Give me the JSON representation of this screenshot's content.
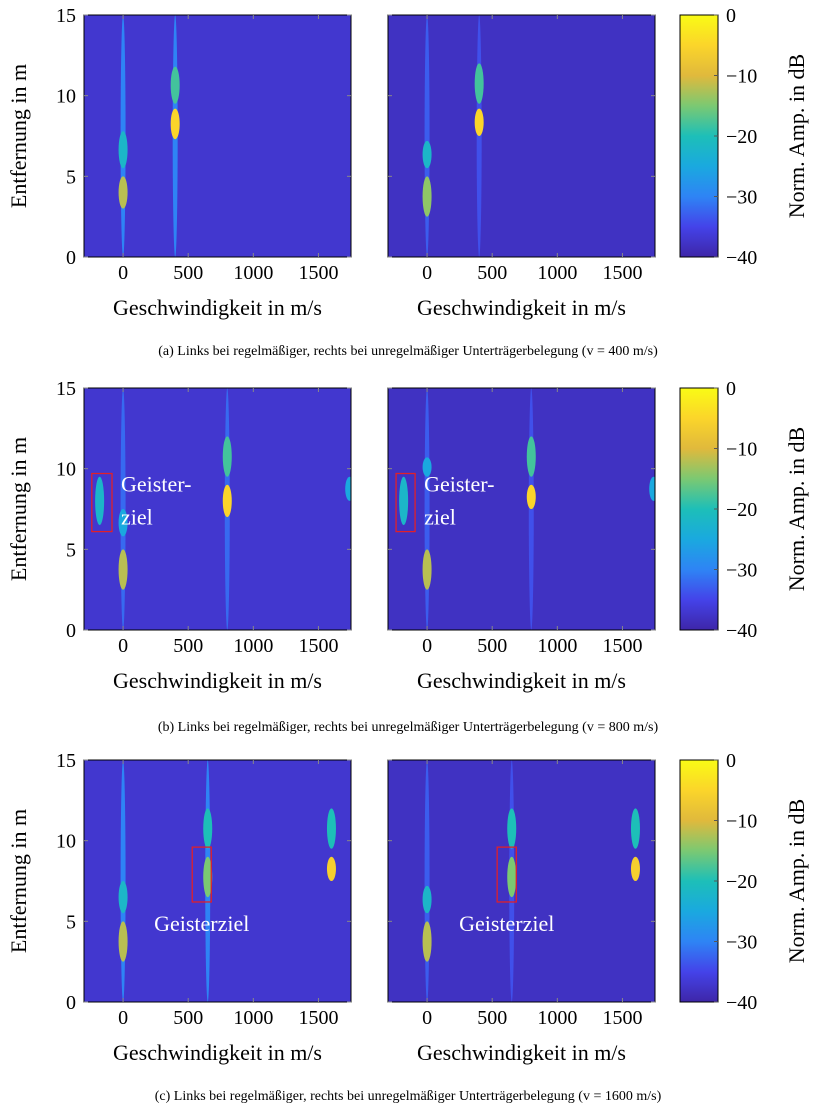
{
  "colormap": [
    "#3e26a8",
    "#4443e9",
    "#2e84f5",
    "#1aa9df",
    "#1dbfb8",
    "#7bc972",
    "#e0b93c",
    "#fbd52a",
    "#f9fb15"
  ],
  "captions": [
    "(a) Links bei regelmäßiger, rechts bei unregelmäßiger Unterträgerbelegung (v = 400 m/s)",
    "(b) Links bei regelmäßiger, rechts bei unregelmäßiger Unterträgerbelegung (v = 800 m/s)",
    "(c) Links bei regelmäßiger, rechts bei unregelmäßiger Unterträgerbelegung (v = 1600 m/s)"
  ],
  "chart_data": [
    {
      "type": "heatmap",
      "xlabel": "Geschwindigkeit in m/s",
      "ylabel": "Entfernung in m",
      "xlim": [
        -300,
        1750
      ],
      "ylim": [
        0,
        15
      ],
      "xticks": [
        0,
        500,
        1000,
        1500
      ],
      "yticks": [
        0,
        5,
        10,
        15
      ],
      "background_level": -37,
      "streaks": [
        {
          "x": 0,
          "y": [
            0,
            15
          ],
          "level": -30
        },
        {
          "x": 0,
          "y": [
            5.5,
            7.8
          ],
          "level": -22
        },
        {
          "x": 0,
          "y": [
            3,
            5
          ],
          "level": -12
        },
        {
          "x": 400,
          "y": [
            0,
            15
          ],
          "level": -30
        },
        {
          "x": 400,
          "y": [
            9.5,
            11.8
          ],
          "level": -18
        },
        {
          "x": 400,
          "y": [
            7.3,
            9.2
          ],
          "level": -5
        }
      ]
    },
    {
      "type": "heatmap",
      "xlabel": "Geschwindigkeit in m/s",
      "xlim": [
        -300,
        1750
      ],
      "ylim": [
        0,
        15
      ],
      "xticks": [
        0,
        500,
        1000,
        1500
      ],
      "yticks": [
        0,
        5,
        10,
        15
      ],
      "yticklabels": false,
      "background_level": -38,
      "streaks": [
        {
          "x": 0,
          "y": [
            0,
            15
          ],
          "level": -33
        },
        {
          "x": 0,
          "y": [
            5.5,
            7.2
          ],
          "level": -22
        },
        {
          "x": 0,
          "y": [
            2.5,
            5
          ],
          "level": -14
        },
        {
          "x": 400,
          "y": [
            0,
            15
          ],
          "level": -34
        },
        {
          "x": 400,
          "y": [
            9.5,
            12
          ],
          "level": -18
        },
        {
          "x": 400,
          "y": [
            7.5,
            9.2
          ],
          "level": -5
        }
      ]
    },
    {
      "type": "colorbar",
      "label": "Norm. Amp. in dB",
      "ylim": [
        -40,
        0
      ],
      "yticks": [
        {
          "value": -40,
          "label": "−40"
        },
        {
          "value": -30,
          "label": "−30"
        },
        {
          "value": -20,
          "label": "−20"
        },
        {
          "value": -10,
          "label": "−10"
        },
        0
      ]
    },
    {
      "type": "heatmap",
      "xlabel": "Geschwindigkeit in m/s",
      "ylabel": "Entfernung in m",
      "xlim": [
        -300,
        1750
      ],
      "ylim": [
        0,
        15
      ],
      "xticks": [
        0,
        500,
        1000,
        1500
      ],
      "yticks": [
        0,
        5,
        10,
        15
      ],
      "background_level": -37,
      "streaks": [
        {
          "x": 0,
          "y": [
            0,
            15
          ],
          "level": -32
        },
        {
          "x": 0,
          "y": [
            5.8,
            7.5
          ],
          "level": -25
        },
        {
          "x": 0,
          "y": [
            2.5,
            5
          ],
          "level": -12
        },
        {
          "x": 800,
          "y": [
            0,
            15
          ],
          "level": -32
        },
        {
          "x": 800,
          "y": [
            9.5,
            12
          ],
          "level": -18
        },
        {
          "x": 800,
          "y": [
            7,
            9
          ],
          "level": -5
        },
        {
          "x": -180,
          "y": [
            6.5,
            9.5
          ],
          "level": -22
        },
        {
          "x": 1740,
          "y": [
            8,
            9.5
          ],
          "level": -25
        }
      ],
      "annotations": [
        {
          "text": [
            "Geister-",
            "ziel"
          ],
          "box": {
            "x": [
              -240,
              -85
            ],
            "y": [
              6.1,
              9.7
            ]
          }
        }
      ]
    },
    {
      "type": "heatmap",
      "xlabel": "Geschwindigkeit in m/s",
      "xlim": [
        -300,
        1750
      ],
      "ylim": [
        0,
        15
      ],
      "xticks": [
        0,
        500,
        1000,
        1500
      ],
      "yticks": [
        0,
        5,
        10,
        15
      ],
      "yticklabels": false,
      "background_level": -38,
      "streaks": [
        {
          "x": 0,
          "y": [
            0,
            15
          ],
          "level": -33
        },
        {
          "x": 0,
          "y": [
            9.5,
            10.7
          ],
          "level": -25
        },
        {
          "x": 0,
          "y": [
            2.5,
            5
          ],
          "level": -12
        },
        {
          "x": 800,
          "y": [
            0,
            15
          ],
          "level": -34
        },
        {
          "x": 800,
          "y": [
            9.5,
            12
          ],
          "level": -18
        },
        {
          "x": 800,
          "y": [
            7.5,
            9
          ],
          "level": -5
        },
        {
          "x": -180,
          "y": [
            6.5,
            9.5
          ],
          "level": -22
        },
        {
          "x": 1740,
          "y": [
            8,
            9.5
          ],
          "level": -25
        }
      ],
      "annotations": [
        {
          "text": [
            "Geister-",
            "ziel"
          ],
          "box": {
            "x": [
              -238,
              -92
            ],
            "y": [
              6.1,
              9.7
            ]
          }
        }
      ]
    },
    {
      "type": "colorbar",
      "label": "Norm. Amp. in dB",
      "ylim": [
        -40,
        0
      ],
      "yticks": [
        {
          "value": -40,
          "label": "−40"
        },
        {
          "value": -30,
          "label": "−30"
        },
        {
          "value": -20,
          "label": "−20"
        },
        {
          "value": -10,
          "label": "−10"
        },
        0
      ]
    },
    {
      "type": "heatmap",
      "xlabel": "Geschwindigkeit in m/s",
      "ylabel": "Entfernung in m",
      "xlim": [
        -300,
        1750
      ],
      "ylim": [
        0,
        15
      ],
      "xticks": [
        0,
        500,
        1000,
        1500
      ],
      "yticks": [
        0,
        5,
        10,
        15
      ],
      "background_level": -37,
      "streaks": [
        {
          "x": 0,
          "y": [
            0,
            15
          ],
          "level": -30
        },
        {
          "x": 0,
          "y": [
            5.5,
            7.5
          ],
          "level": -22
        },
        {
          "x": 0,
          "y": [
            2.5,
            5
          ],
          "level": -12
        },
        {
          "x": 650,
          "y": [
            0,
            15
          ],
          "level": -30
        },
        {
          "x": 650,
          "y": [
            9.5,
            12
          ],
          "level": -20
        },
        {
          "x": 650,
          "y": [
            6.5,
            9
          ],
          "level": -15
        },
        {
          "x": 1600,
          "y": [
            9.5,
            12
          ],
          "level": -20
        },
        {
          "x": 1600,
          "y": [
            7.5,
            9
          ],
          "level": -6
        }
      ],
      "annotations": [
        {
          "text": [
            "Geisterziel"
          ],
          "box": {
            "x": [
              531,
              677
            ],
            "y": [
              6.2,
              9.6
            ]
          }
        }
      ]
    },
    {
      "type": "heatmap",
      "xlabel": "Geschwindigkeit in m/s",
      "xlim": [
        -300,
        1750
      ],
      "ylim": [
        0,
        15
      ],
      "xticks": [
        0,
        500,
        1000,
        1500
      ],
      "yticks": [
        0,
        5,
        10,
        15
      ],
      "yticklabels": false,
      "background_level": -38,
      "streaks": [
        {
          "x": 0,
          "y": [
            0,
            15
          ],
          "level": -33
        },
        {
          "x": 0,
          "y": [
            5.5,
            7.2
          ],
          "level": -22
        },
        {
          "x": 0,
          "y": [
            2.5,
            5
          ],
          "level": -12
        },
        {
          "x": 650,
          "y": [
            0,
            15
          ],
          "level": -34
        },
        {
          "x": 650,
          "y": [
            9.5,
            12
          ],
          "level": -20
        },
        {
          "x": 650,
          "y": [
            6.5,
            9
          ],
          "level": -15
        },
        {
          "x": 1600,
          "y": [
            9.5,
            12
          ],
          "level": -20
        },
        {
          "x": 1600,
          "y": [
            7.5,
            9
          ],
          "level": -6
        }
      ],
      "annotations": [
        {
          "text": [
            "Geisterziel"
          ],
          "box": {
            "x": [
              538,
              685
            ],
            "y": [
              6.2,
              9.6
            ]
          }
        }
      ]
    },
    {
      "type": "colorbar",
      "label": "Norm. Amp. in dB",
      "ylim": [
        -40,
        0
      ],
      "yticks": [
        {
          "value": -40,
          "label": "−40"
        },
        {
          "value": -30,
          "label": "−30"
        },
        {
          "value": -20,
          "label": "−20"
        },
        {
          "value": -10,
          "label": "−10"
        },
        0
      ]
    }
  ]
}
